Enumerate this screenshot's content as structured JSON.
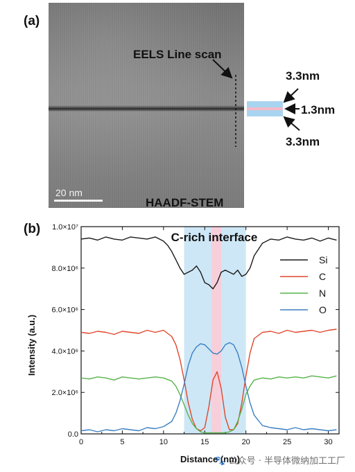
{
  "panel_a": {
    "label": "(a)",
    "line_scan_label": "EELS Line scan",
    "scale_bar_label": "20 nm",
    "technique_label": "HAADF-STEM",
    "top_layer_label": "3.3nm",
    "middle_layer_label": "1.3nm",
    "bottom_layer_label": "3.3nm",
    "colors": {
      "blue_band": "#a9d4ef",
      "pink_band": "#f4b9c8"
    }
  },
  "panel_b": {
    "label": "(b)"
  },
  "watermark": "🐾 公众号 · 半导体微纳加工工厂",
  "chart_data": {
    "type": "line",
    "annotation": "C-rich interface",
    "xlabel": "Distance (nm)",
    "ylabel": "Intensity (a.u.)",
    "xlim": [
      0,
      31.3
    ],
    "ylim": [
      0,
      10000000
    ],
    "x_ticks": [
      0,
      5,
      10,
      15,
      20,
      25,
      30
    ],
    "x_tick_labels": [
      "0",
      "5",
      "10",
      "15",
      "20",
      "25",
      "30"
    ],
    "y_ticks": [
      0,
      2000000,
      4000000,
      6000000,
      8000000,
      10000000
    ],
    "y_tick_labels": [
      "0.0",
      "2.0×10⁶",
      "4.0×10⁶",
      "6.0×10⁶",
      "8.0×10⁶",
      "1.0×10⁷"
    ],
    "bands": [
      {
        "x0": 12.5,
        "x1": 20.0,
        "color": "#cde7f6"
      },
      {
        "x0": 15.8,
        "x1": 17.0,
        "color": "#f6cfdb"
      }
    ],
    "legend_position": "right",
    "series": [
      {
        "name": "Si",
        "color": "#1a1a1a",
        "x": [
          0,
          1,
          2,
          3,
          4,
          5,
          6,
          7,
          8,
          9,
          10,
          10.5,
          11,
          11.5,
          12,
          12.5,
          13,
          13.5,
          14,
          14.5,
          15,
          15.5,
          16,
          16.5,
          17,
          17.5,
          18,
          18.5,
          19,
          19.5,
          20,
          20.5,
          21,
          22,
          23,
          24,
          25,
          26,
          27,
          28,
          29,
          30,
          31
        ],
        "y": [
          9.4,
          9.45,
          9.35,
          9.5,
          9.4,
          9.35,
          9.5,
          9.45,
          9.4,
          9.5,
          9.3,
          9.1,
          8.8,
          8.4,
          8.0,
          7.7,
          7.8,
          7.9,
          8.1,
          7.8,
          7.3,
          7.2,
          7.0,
          7.3,
          7.8,
          7.9,
          7.8,
          7.7,
          7.9,
          7.6,
          7.7,
          8.0,
          8.6,
          9.2,
          9.4,
          9.35,
          9.5,
          9.4,
          9.35,
          9.45,
          9.3,
          9.45,
          9.35
        ]
      },
      {
        "name": "C",
        "color": "#e0452b",
        "x": [
          0,
          1,
          2,
          3,
          4,
          5,
          6,
          7,
          8,
          9,
          10,
          11,
          11.5,
          12,
          12.5,
          13,
          13.5,
          14,
          14.5,
          15,
          15.5,
          16,
          16.5,
          17,
          17.5,
          18,
          18.5,
          19,
          19.5,
          20,
          20.5,
          21,
          22,
          23,
          24,
          25,
          26,
          27,
          28,
          29,
          30,
          31
        ],
        "y": [
          4.9,
          4.85,
          4.95,
          4.9,
          4.8,
          4.95,
          4.9,
          4.85,
          5.0,
          4.9,
          5.0,
          4.7,
          4.3,
          3.6,
          2.6,
          1.5,
          0.7,
          0.25,
          0.15,
          0.3,
          1.3,
          2.6,
          3.0,
          2.2,
          0.8,
          0.2,
          0.2,
          0.5,
          1.5,
          2.8,
          3.9,
          4.6,
          4.9,
          4.95,
          4.85,
          5.0,
          4.9,
          4.95,
          5.0,
          4.9,
          5.0,
          5.05
        ]
      },
      {
        "name": "N",
        "color": "#57b34a",
        "x": [
          0,
          1,
          2,
          3,
          4,
          5,
          6,
          7,
          8,
          9,
          10,
          11,
          11.5,
          12,
          12.5,
          13,
          13.5,
          14,
          14.5,
          15,
          15.5,
          16,
          16.5,
          17,
          17.5,
          18,
          18.5,
          19,
          19.5,
          20,
          20.5,
          21,
          22,
          23,
          24,
          25,
          26,
          27,
          28,
          29,
          30,
          31
        ],
        "y": [
          2.7,
          2.65,
          2.75,
          2.7,
          2.6,
          2.75,
          2.7,
          2.65,
          2.7,
          2.75,
          2.7,
          2.55,
          2.3,
          1.9,
          1.4,
          0.9,
          0.5,
          0.25,
          0.1,
          0.05,
          0.05,
          0.05,
          0.05,
          0.05,
          0.05,
          0.1,
          0.2,
          0.6,
          1.2,
          1.9,
          2.3,
          2.6,
          2.7,
          2.65,
          2.75,
          2.7,
          2.75,
          2.7,
          2.8,
          2.75,
          2.7,
          2.8
        ]
      },
      {
        "name": "O",
        "color": "#3a7fc1",
        "x": [
          0,
          1,
          2,
          3,
          4,
          5,
          6,
          7,
          8,
          9,
          10,
          11,
          11.5,
          12,
          12.5,
          13,
          13.5,
          14,
          14.5,
          15,
          15.5,
          16,
          16.5,
          17,
          17.5,
          18,
          18.5,
          19,
          19.5,
          20,
          20.5,
          21,
          22,
          23,
          24,
          25,
          26,
          27,
          28,
          29,
          30,
          31
        ],
        "y": [
          0.15,
          0.2,
          0.1,
          0.2,
          0.15,
          0.25,
          0.2,
          0.15,
          0.3,
          0.25,
          0.35,
          0.6,
          1.0,
          1.6,
          2.4,
          3.3,
          3.9,
          4.2,
          4.35,
          4.3,
          4.1,
          3.9,
          3.85,
          4.0,
          4.3,
          4.4,
          4.3,
          3.9,
          3.2,
          2.3,
          1.5,
          0.9,
          0.4,
          0.3,
          0.25,
          0.2,
          0.3,
          0.2,
          0.25,
          0.2,
          0.15,
          0.2
        ]
      }
    ]
  }
}
